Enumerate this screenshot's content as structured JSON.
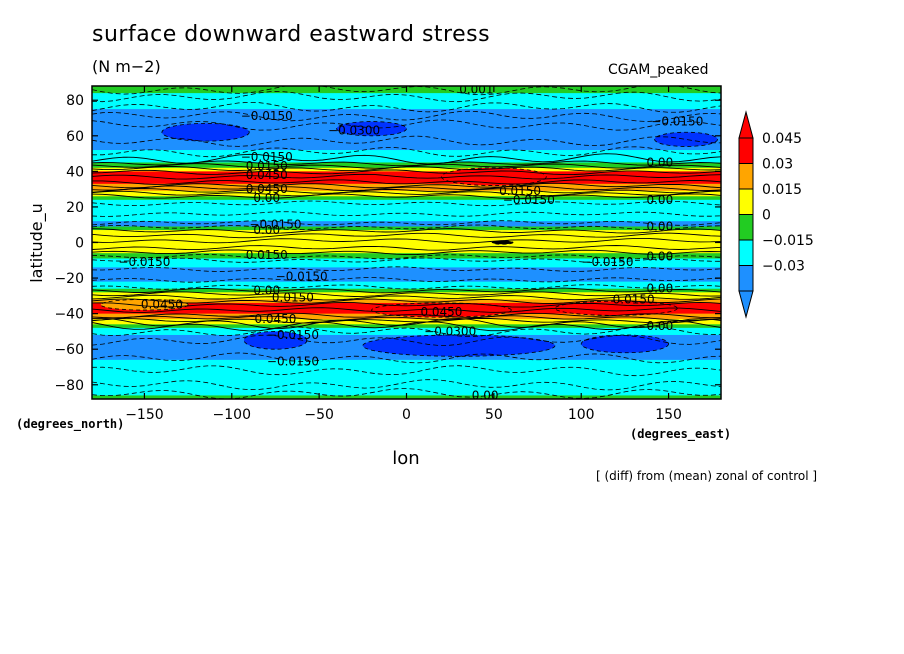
{
  "chart_data": {
    "type": "contour",
    "title": "surface downward eastward stress",
    "units": "(N m−2)",
    "model_label": "CGAM_peaked",
    "note": "[ (diff) from (mean) zonal of control ]",
    "xlabel": "lon",
    "ylabel": "latitude_u",
    "x_unit_label": "(degrees_east)",
    "y_unit_label": "(degrees_north)",
    "xlim": [
      -180,
      180
    ],
    "ylim": [
      -88,
      88
    ],
    "x_ticks": [
      -150,
      -100,
      -50,
      0,
      50,
      100,
      150
    ],
    "x_tick_labels": [
      "−150",
      "−100",
      "−50",
      "0",
      "50",
      "100",
      "150"
    ],
    "y_ticks": [
      80,
      60,
      40,
      20,
      0,
      -20,
      -40,
      -60,
      -80
    ],
    "y_tick_labels": [
      "80",
      "60",
      "40",
      "20",
      "0",
      "−20",
      "−40",
      "−60",
      "−80"
    ],
    "colorbar": {
      "labels": [
        "0.045",
        "0.03",
        "0.015",
        "0",
        "−0.015",
        "−0.03"
      ],
      "colors": [
        "#ff0000",
        "#ffa500",
        "#ffff00",
        "#22cc22",
        "#00ffff",
        "#1e90ff"
      ],
      "top_arrow_color": "#ff0000",
      "bottom_arrow_color": "#1e90ff"
    },
    "bands": [
      {
        "lat": [
          84,
          88
        ],
        "color": "#22cc22"
      },
      {
        "lat": [
          75,
          84
        ],
        "color": "#00ffff"
      },
      {
        "lat": [
          52,
          75
        ],
        "color": "#1e90ff"
      },
      {
        "lat": [
          45,
          52
        ],
        "color": "#00ffff"
      },
      {
        "lat": [
          42,
          45
        ],
        "color": "#22cc22"
      },
      {
        "lat": [
          40,
          42
        ],
        "color": "#ffff00"
      },
      {
        "lat": [
          33,
          40
        ],
        "color": "#ff0000"
      },
      {
        "lat": [
          29,
          33
        ],
        "color": "#ffa500"
      },
      {
        "lat": [
          26,
          29
        ],
        "color": "#ffff00"
      },
      {
        "lat": [
          24,
          26
        ],
        "color": "#22cc22"
      },
      {
        "lat": [
          12,
          24
        ],
        "color": "#00ffff"
      },
      {
        "lat": [
          9,
          12
        ],
        "color": "#1e90ff"
      },
      {
        "lat": [
          7,
          9
        ],
        "color": "#22cc22"
      },
      {
        "lat": [
          -6,
          7
        ],
        "color": "#ffff00"
      },
      {
        "lat": [
          -9,
          -6
        ],
        "color": "#22cc22"
      },
      {
        "lat": [
          -14,
          -9
        ],
        "color": "#00ffff"
      },
      {
        "lat": [
          -22,
          -14
        ],
        "color": "#1e90ff"
      },
      {
        "lat": [
          -26,
          -22
        ],
        "color": "#00ffff"
      },
      {
        "lat": [
          -28,
          -26
        ],
        "color": "#22cc22"
      },
      {
        "lat": [
          -32,
          -28
        ],
        "color": "#ffff00"
      },
      {
        "lat": [
          -34,
          -32
        ],
        "color": "#ffa500"
      },
      {
        "lat": [
          -40,
          -34
        ],
        "color": "#ff0000"
      },
      {
        "lat": [
          -43,
          -40
        ],
        "color": "#ffa500"
      },
      {
        "lat": [
          -46,
          -43
        ],
        "color": "#ffff00"
      },
      {
        "lat": [
          -48,
          -46
        ],
        "color": "#22cc22"
      },
      {
        "lat": [
          -52,
          -48
        ],
        "color": "#00ffff"
      },
      {
        "lat": [
          -66,
          -52
        ],
        "color": "#1e90ff"
      },
      {
        "lat": [
          -86,
          -66
        ],
        "color": "#00ffff"
      },
      {
        "lat": [
          -88,
          -86
        ],
        "color": "#22cc22"
      }
    ],
    "blobs": [
      {
        "lon": -115,
        "lat": 62,
        "rlon": 25,
        "rlat": 5,
        "color": "#0033ff"
      },
      {
        "lon": -20,
        "lat": 64,
        "rlon": 20,
        "rlat": 4,
        "color": "#0033ff"
      },
      {
        "lon": 160,
        "lat": 58,
        "rlon": 18,
        "rlat": 4,
        "color": "#0033ff"
      },
      {
        "lon": 30,
        "lat": -58,
        "rlon": 55,
        "rlat": 6,
        "color": "#0033ff"
      },
      {
        "lon": 125,
        "lat": -57,
        "rlon": 25,
        "rlat": 5,
        "color": "#0033ff"
      },
      {
        "lon": -75,
        "lat": -55,
        "rlon": 18,
        "rlat": 5,
        "color": "#0033ff"
      },
      {
        "lon": 20,
        "lat": -38,
        "rlon": 40,
        "rlat": 4,
        "color": "#ff0000"
      },
      {
        "lon": 120,
        "lat": -37,
        "rlon": 35,
        "rlat": 4,
        "color": "#ff0000"
      },
      {
        "lon": -150,
        "lat": -35,
        "rlon": 25,
        "rlat": 3,
        "color": "#ffa500"
      },
      {
        "lon": 50,
        "lat": 37,
        "rlon": 30,
        "rlat": 5,
        "color": "#ff0000"
      },
      {
        "lon": 55,
        "lat": 0,
        "rlon": 6,
        "rlat": 1,
        "color": "#000000"
      }
    ],
    "contour_lines_lat": [
      86,
      82,
      76,
      71,
      66,
      57,
      51,
      47,
      44.5,
      43,
      41.5,
      39.5,
      37,
      34,
      32,
      30.5,
      29,
      27.5,
      26,
      22,
      16,
      11,
      8.5,
      6.5,
      4,
      1,
      -3,
      -5.5,
      -8,
      -10,
      -15,
      -21,
      -25,
      -27,
      -29,
      -31,
      -33,
      -35,
      -38,
      -41,
      -42.5,
      -44,
      -45.5,
      -47,
      -50,
      -55,
      -65,
      -72,
      -80,
      -85
    ],
    "contour_labels": [
      {
        "text": "0.001",
        "lon": 40,
        "lat": 86
      },
      {
        "text": "-0.0150",
        "lon": -80,
        "lat": 71
      },
      {
        "text": "-0.0300",
        "lon": -30,
        "lat": 63
      },
      {
        "text": "-0.0150",
        "lon": 155,
        "lat": 68
      },
      {
        "text": "-0.0150",
        "lon": -80,
        "lat": 48
      },
      {
        "text": "0.0150",
        "lon": -80,
        "lat": 43
      },
      {
        "text": "0.0450",
        "lon": -80,
        "lat": 38
      },
      {
        "text": "0.00",
        "lon": 145,
        "lat": 45
      },
      {
        "text": "0.0450",
        "lon": -80,
        "lat": 30
      },
      {
        "text": "0.00",
        "lon": -80,
        "lat": 25
      },
      {
        "text": "0.0150",
        "lon": 65,
        "lat": 29
      },
      {
        "text": "-0.0150",
        "lon": 70,
        "lat": 24
      },
      {
        "text": "0.00",
        "lon": 145,
        "lat": 24
      },
      {
        "text": "-0.0150",
        "lon": -75,
        "lat": 10
      },
      {
        "text": "0.00",
        "lon": -80,
        "lat": 7
      },
      {
        "text": "0.00",
        "lon": 145,
        "lat": 9
      },
      {
        "text": "0.0150",
        "lon": -80,
        "lat": -7
      },
      {
        "text": "-0.0150",
        "lon": -150,
        "lat": -11
      },
      {
        "text": "-0.0150",
        "lon": 115,
        "lat": -11
      },
      {
        "text": "0.00",
        "lon": 145,
        "lat": -8
      },
      {
        "text": "-0.0150",
        "lon": -60,
        "lat": -19
      },
      {
        "text": "0.00",
        "lon": -80,
        "lat": -27
      },
      {
        "text": "0.0150",
        "lon": -65,
        "lat": -31
      },
      {
        "text": "0.00",
        "lon": 145,
        "lat": -26
      },
      {
        "text": "0.0450",
        "lon": -140,
        "lat": -35
      },
      {
        "text": "0.0150",
        "lon": 130,
        "lat": -32
      },
      {
        "text": "0.0450",
        "lon": 20,
        "lat": -39
      },
      {
        "text": "0.0450",
        "lon": -75,
        "lat": -43
      },
      {
        "text": "-0.0300",
        "lon": 25,
        "lat": -50
      },
      {
        "text": "-0.0150",
        "lon": -65,
        "lat": -52
      },
      {
        "text": "0.00",
        "lon": 145,
        "lat": -47
      },
      {
        "text": "-0.0150",
        "lon": -65,
        "lat": -67
      },
      {
        "text": "0.00",
        "lon": 45,
        "lat": -86
      }
    ],
    "grid": false
  }
}
